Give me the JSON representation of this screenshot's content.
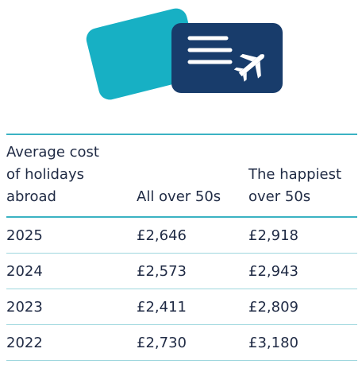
{
  "icons": {
    "card": "card-icon",
    "ticket": "boarding-pass-icon",
    "plane": "airplane-icon",
    "lines": "text-lines-icon"
  },
  "colors": {
    "card": "#17b0c4",
    "ticket": "#183c6b",
    "rule": "#3bb3c3",
    "text": "#1f2a44"
  },
  "table": {
    "headers": {
      "col1_lines": [
        "Average cost",
        "of holidays",
        "abroad"
      ],
      "col2": "All over 50s",
      "col3_lines": [
        "The happiest",
        "over 50s"
      ]
    },
    "rows": [
      {
        "year": "2025",
        "all": "£2,646",
        "happiest": "£2,918"
      },
      {
        "year": "2024",
        "all": "£2,573",
        "happiest": "£2,943"
      },
      {
        "year": "2023",
        "all": "£2,411",
        "happiest": "£2,809"
      },
      {
        "year": "2022",
        "all": "£2,730",
        "happiest": "£3,180"
      }
    ]
  }
}
